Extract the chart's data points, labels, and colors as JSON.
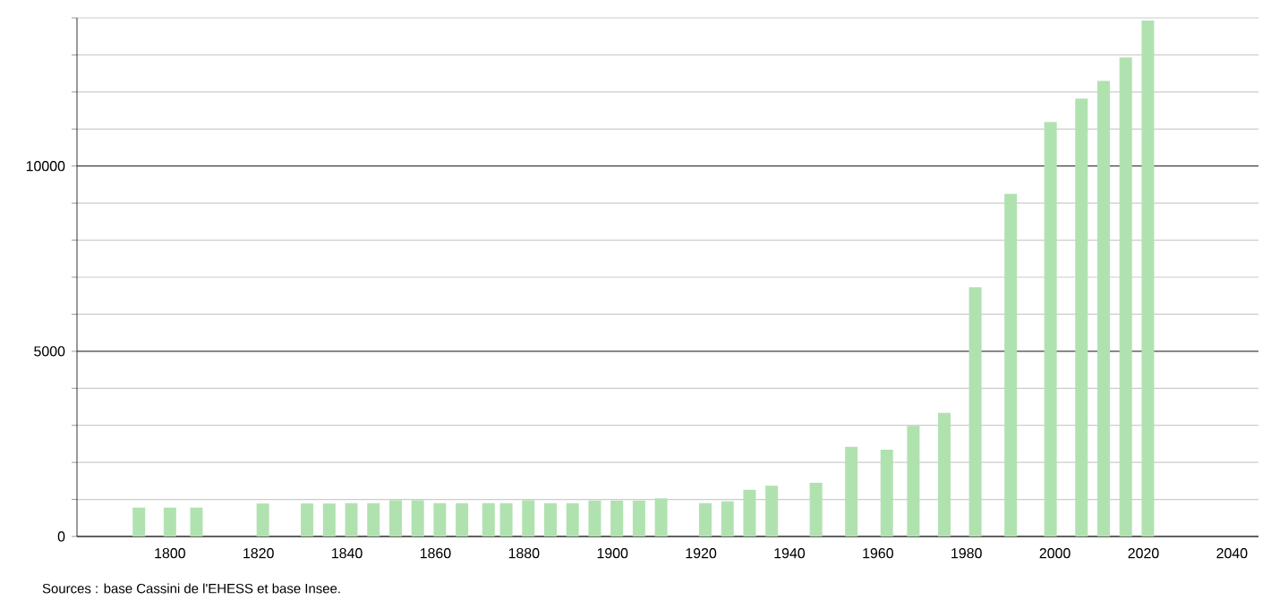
{
  "chart_data": {
    "type": "bar",
    "color": "#b0e2b0",
    "x": [
      1793,
      1800,
      1806,
      1821,
      1831,
      1836,
      1841,
      1846,
      1851,
      1856,
      1861,
      1866,
      1872,
      1876,
      1881,
      1886,
      1891,
      1896,
      1901,
      1906,
      1911,
      1921,
      1926,
      1931,
      1936,
      1946,
      1954,
      1962,
      1968,
      1975,
      1982,
      1990,
      1999,
      2006,
      2011,
      2016,
      2021
    ],
    "values": [
      780,
      780,
      780,
      890,
      890,
      890,
      900,
      900,
      980,
      980,
      900,
      900,
      900,
      900,
      980,
      900,
      900,
      970,
      970,
      970,
      1030,
      900,
      950,
      1260,
      1370,
      1450,
      2420,
      2340,
      2990,
      3340,
      6730,
      9250,
      11190,
      11820,
      12300,
      12930,
      13930
    ],
    "xlim": [
      1779,
      2046
    ],
    "ylim": [
      0,
      14000
    ],
    "xticks": [
      1800,
      1820,
      1840,
      1860,
      1880,
      1900,
      1920,
      1940,
      1960,
      1980,
      2000,
      2020,
      2040
    ],
    "yticks": [
      0,
      {
        "value": 1000,
        "label": null
      },
      {
        "value": 2000,
        "label": null
      },
      {
        "value": 3000,
        "label": null
      },
      {
        "value": 4000,
        "label": null
      },
      5000,
      {
        "value": 6000,
        "label": null
      },
      {
        "value": 7000,
        "label": null
      },
      {
        "value": 8000,
        "label": null
      },
      {
        "value": 9000,
        "label": null
      },
      10000,
      {
        "value": 11000,
        "label": null
      },
      {
        "value": 12000,
        "label": null
      },
      {
        "value": 13000,
        "label": null
      },
      {
        "value": 14000,
        "label": null
      }
    ],
    "grid": "y",
    "annotations": [
      "Sources : base Cassini de l'EHESS et base Insee."
    ]
  }
}
